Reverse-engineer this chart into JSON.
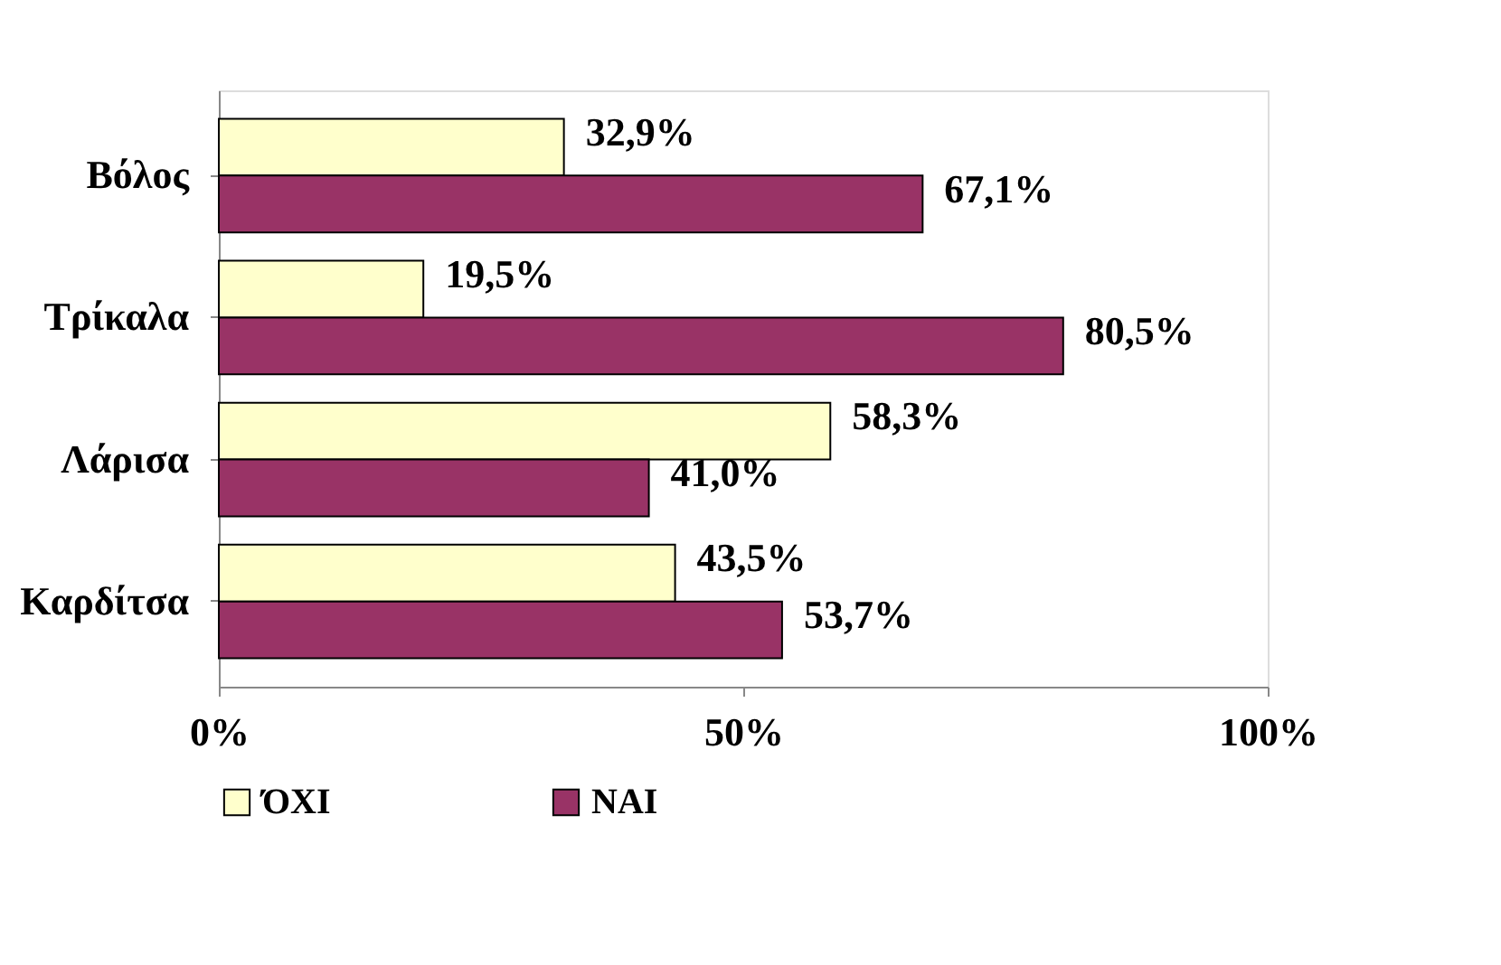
{
  "chart_data": {
    "type": "bar",
    "orientation": "horizontal",
    "categories": [
      "Βόλος",
      "Τρίκαλα",
      "Λάρισα",
      "Καρδίτσα"
    ],
    "series": [
      {
        "name": "ΌΧΙ",
        "color": "#ffffcc",
        "values": [
          32.9,
          19.5,
          58.3,
          43.5
        ],
        "value_labels": [
          "32,9%",
          "19,5%",
          "58,3%",
          "43,5%"
        ]
      },
      {
        "name": "ΝΑΙ",
        "color": "#993366",
        "values": [
          67.1,
          80.5,
          41.0,
          53.7
        ],
        "value_labels": [
          "67,1%",
          "80,5%",
          "41,0%",
          "53,7%"
        ]
      }
    ],
    "xlim": [
      0,
      100
    ],
    "xticks": [
      {
        "value": 0,
        "label": "0%"
      },
      {
        "value": 50,
        "label": "50%"
      },
      {
        "value": 100,
        "label": "100%"
      }
    ],
    "grid": false,
    "legend": "bottom"
  }
}
